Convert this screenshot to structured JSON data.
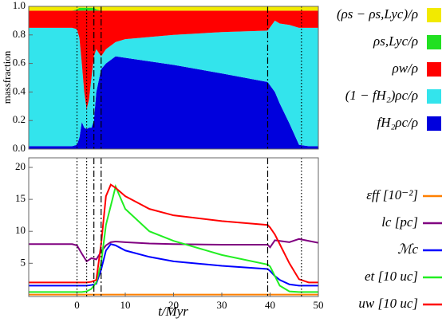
{
  "chart_data": [
    {
      "type": "area",
      "ylabel": "massfraction",
      "x": [
        -10,
        -1,
        0,
        0.5,
        1,
        1.5,
        2,
        2.5,
        3,
        3.5,
        4,
        5,
        6,
        8,
        10,
        20,
        30,
        39.5,
        41,
        42,
        44,
        46,
        48,
        50
      ],
      "series": [
        {
          "name": "fH₂ρc/ρ",
          "color": "#0000dd",
          "values": [
            0.02,
            0.02,
            0.03,
            0.08,
            0.19,
            0.15,
            0.14,
            0.15,
            0.15,
            0.2,
            0.4,
            0.56,
            0.6,
            0.65,
            0.64,
            0.59,
            0.53,
            0.47,
            0.4,
            0.32,
            0.18,
            0.03,
            0.02,
            0.02
          ]
        },
        {
          "name": "(1 − fH₂)ρc/ρ",
          "color": "#33e4ec",
          "values": [
            0.83,
            0.83,
            0.81,
            0.7,
            0.41,
            0.25,
            0.14,
            0.2,
            0.35,
            0.45,
            0.3,
            0.09,
            0.1,
            0.1,
            0.13,
            0.21,
            0.29,
            0.36,
            0.5,
            0.56,
            0.69,
            0.82,
            0.83,
            0.83
          ]
        },
        {
          "name": "ρw/ρ",
          "color": "#ff0000",
          "values": [
            0.12,
            0.12,
            0.13,
            0.19,
            0.37,
            0.57,
            0.69,
            0.62,
            0.47,
            0.32,
            0.27,
            0.32,
            0.27,
            0.22,
            0.2,
            0.17,
            0.15,
            0.14,
            0.07,
            0.09,
            0.1,
            0.12,
            0.12,
            0.12
          ]
        },
        {
          "name": "ρs,Lyc/ρ",
          "color": "#22e022",
          "values": [
            0,
            0,
            0.01,
            0.02,
            0.02,
            0.02,
            0.02,
            0.02,
            0.02,
            0.02,
            0.01,
            0,
            0,
            0,
            0,
            0,
            0,
            0,
            0,
            0,
            0,
            0,
            0,
            0
          ]
        },
        {
          "name": "(ρs − ρs,Lyc)/ρ",
          "color": "#f2ea00",
          "values": [
            0.03,
            0.03,
            0.02,
            0.01,
            0.01,
            0.01,
            0.01,
            0.01,
            0.01,
            0.01,
            0.02,
            0.03,
            0.03,
            0.03,
            0.03,
            0.03,
            0.03,
            0.03,
            0.03,
            0.03,
            0.03,
            0.03,
            0.03,
            0.03
          ]
        }
      ],
      "xlim": [
        -10,
        50
      ],
      "ylim": [
        0,
        1
      ],
      "yticks": [
        {
          "value": 0,
          "label": "0.0"
        },
        0.2,
        0.4,
        0.6,
        0.8,
        {
          "value": 1,
          "label": "1.0"
        }
      ],
      "vlines": [
        {
          "x": 0,
          "style": "dotted"
        },
        {
          "x": 2,
          "style": "dotted"
        },
        {
          "x": 3.5,
          "style": "dashdot"
        },
        {
          "x": 5,
          "style": "dashdot"
        },
        {
          "x": 39.5,
          "style": "dashdot"
        },
        {
          "x": 46.5,
          "style": "dotted"
        }
      ]
    },
    {
      "type": "line",
      "xlabel": "t/Myr",
      "x": [
        -10,
        -1,
        0,
        1,
        2,
        3,
        4,
        5,
        6,
        7,
        8,
        10,
        15,
        20,
        30,
        39.5,
        40,
        41,
        42,
        44,
        46,
        48,
        50
      ],
      "series": [
        {
          "name": "εff [10⁻²]",
          "color": "#ff8000",
          "values": [
            0.1,
            0.1,
            0.1,
            0.1,
            0.1,
            0.1,
            0.1,
            0.1,
            0.1,
            0.1,
            0.1,
            0.1,
            0.1,
            0.1,
            0.1,
            0.1,
            0.1,
            0.1,
            0.1,
            0.1,
            0.1,
            0.1,
            0.1
          ]
        },
        {
          "name": "lc [pc]",
          "color": "#800080",
          "values": [
            8,
            8,
            7.8,
            6.5,
            5.3,
            5.8,
            5.6,
            6.8,
            7.8,
            8.3,
            8.4,
            8.3,
            8.1,
            8,
            7.9,
            7.9,
            7.5,
            8.6,
            8.5,
            8.3,
            8.8,
            8.5,
            8.2
          ]
        },
        {
          "name": "ℳc",
          "color": "#0000ff",
          "values": [
            1.5,
            1.5,
            1.5,
            1.5,
            1.5,
            1.6,
            1.8,
            4,
            7,
            8,
            7.8,
            7,
            6,
            5.3,
            4.6,
            4.1,
            3.8,
            3.0,
            2.4,
            1.7,
            1.5,
            1.5,
            1.5
          ]
        },
        {
          "name": "et [10 uc]",
          "color": "#22ee22",
          "values": [
            0.5,
            0.5,
            0.5,
            0.5,
            0.6,
            1,
            2,
            5,
            11,
            14,
            17,
            13.5,
            10,
            8.5,
            6.3,
            4.8,
            4.5,
            3,
            1.5,
            0.6,
            0.5,
            0.5,
            0.5
          ]
        },
        {
          "name": "uw [10 uc]",
          "color": "#ff0000",
          "values": [
            2,
            2,
            2,
            2,
            2,
            2.1,
            2.4,
            8,
            15.5,
            17.3,
            16.8,
            15.5,
            13.5,
            12.5,
            11.6,
            11,
            10.6,
            9.5,
            8,
            5,
            2.5,
            2,
            2
          ]
        }
      ],
      "xlim": [
        -10,
        50
      ],
      "ylim": [
        -0.2,
        21.5
      ],
      "xticks": [
        0,
        10,
        20,
        30,
        40,
        50
      ],
      "yticks": [
        5,
        10,
        15,
        20
      ],
      "vlines": [
        {
          "x": 0,
          "style": "dotted"
        },
        {
          "x": 2,
          "style": "dotted"
        },
        {
          "x": 3.5,
          "style": "dashdot"
        },
        {
          "x": 5,
          "style": "dashdot"
        },
        {
          "x": 39.5,
          "style": "dashdot"
        },
        {
          "x": 46.5,
          "style": "dotted"
        }
      ]
    }
  ]
}
